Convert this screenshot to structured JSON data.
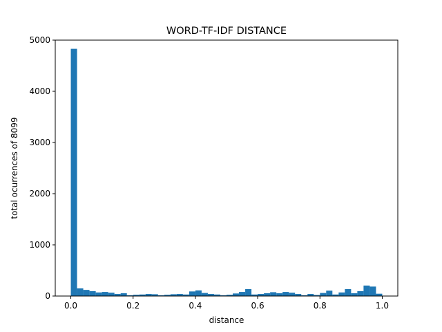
{
  "chart_data": {
    "type": "bar",
    "title": "WORD-TF-IDF DISTANCE",
    "xlabel": "distance",
    "ylabel": "total ocurrences of 8099",
    "xlim": [
      -0.05,
      1.05
    ],
    "ylim": [
      0,
      5000
    ],
    "x_ticks": [
      "0.0",
      "0.2",
      "0.4",
      "0.6",
      "0.8",
      "1.0"
    ],
    "y_ticks": [
      "0",
      "1000",
      "2000",
      "3000",
      "4000",
      "5000"
    ],
    "bin_width": 0.02,
    "bin_starts": [
      0.0,
      0.02,
      0.04,
      0.06,
      0.08,
      0.1,
      0.12,
      0.14,
      0.16,
      0.18,
      0.2,
      0.22,
      0.24,
      0.26,
      0.28,
      0.3,
      0.32,
      0.34,
      0.36,
      0.38,
      0.4,
      0.42,
      0.44,
      0.46,
      0.48,
      0.5,
      0.52,
      0.54,
      0.56,
      0.58,
      0.6,
      0.62,
      0.64,
      0.66,
      0.68,
      0.7,
      0.72,
      0.74,
      0.76,
      0.78,
      0.8,
      0.82,
      0.84,
      0.86,
      0.88,
      0.9,
      0.92,
      0.94,
      0.96,
      0.98
    ],
    "values": [
      4830,
      150,
      120,
      95,
      70,
      80,
      65,
      40,
      55,
      15,
      25,
      30,
      40,
      35,
      15,
      25,
      35,
      40,
      30,
      90,
      110,
      60,
      40,
      30,
      15,
      25,
      50,
      80,
      135,
      30,
      40,
      55,
      75,
      55,
      80,
      65,
      40,
      15,
      40,
      20,
      60,
      105,
      30,
      70,
      135,
      55,
      95,
      205,
      185,
      45
    ],
    "color": "#1f77b4",
    "grid": false,
    "legend": "none"
  }
}
